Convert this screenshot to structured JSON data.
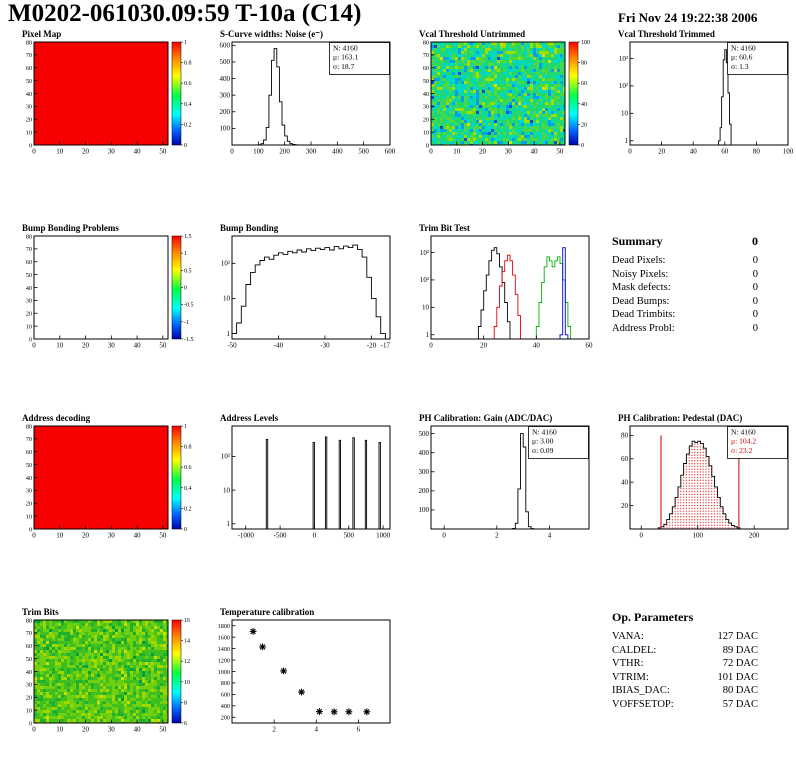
{
  "header": {
    "title": "M0202-061030.09:59 T-10a (C14)",
    "timestamp": "Fri Nov 24 19:22:38 2006"
  },
  "summary": {
    "title": "Summary",
    "total": "0",
    "rows": [
      [
        "Dead Pixels:",
        "0"
      ],
      [
        "Noisy Pixels:",
        "0"
      ],
      [
        "Mask defects:",
        "0"
      ],
      [
        "Dead Bumps:",
        "0"
      ],
      [
        "Dead Trimbits:",
        "0"
      ],
      [
        "Address Probl:",
        "0"
      ]
    ]
  },
  "op_parameters": {
    "title": "Op. Parameters",
    "rows": [
      [
        "VANA:",
        "127 DAC"
      ],
      [
        "CALDEL:",
        "89 DAC"
      ],
      [
        "VTHR:",
        "72 DAC"
      ],
      [
        "VTRIM:",
        "101 DAC"
      ],
      [
        "IBIAS_DAC:",
        "80 DAC"
      ],
      [
        "VOFFSETOP:",
        "57 DAC"
      ]
    ]
  },
  "chart_data": [
    {
      "id": "pixel-map",
      "title": "Pixel Map",
      "type": "heatmap",
      "fill": "#f90000",
      "xlim": [
        0,
        52
      ],
      "ylim": [
        0,
        80
      ],
      "xticks": [
        0,
        10,
        20,
        30,
        40,
        50
      ],
      "yticks": [
        0,
        10,
        20,
        30,
        40,
        50,
        60,
        70,
        80
      ],
      "colorbar": {
        "labels": [
          "1",
          "0.8",
          "0.6",
          "0.4",
          "0.2",
          "0"
        ]
      }
    },
    {
      "id": "scurve-noise",
      "title": "S-Curve widths: Noise (e⁻)",
      "type": "hist",
      "xlim": [
        0,
        600
      ],
      "ylim": [
        0,
        620
      ],
      "xticks": [
        0,
        100,
        200,
        300,
        400,
        500,
        600
      ],
      "yticks": [
        100,
        200,
        300,
        400,
        500,
        600
      ],
      "bin_width": 10,
      "bins": [
        [
          100,
          2
        ],
        [
          110,
          8
        ],
        [
          120,
          30
        ],
        [
          130,
          105
        ],
        [
          140,
          300
        ],
        [
          150,
          510
        ],
        [
          160,
          580
        ],
        [
          170,
          470
        ],
        [
          180,
          260
        ],
        [
          190,
          120
        ],
        [
          200,
          55
        ],
        [
          210,
          22
        ],
        [
          220,
          8
        ],
        [
          230,
          3
        ],
        [
          240,
          1
        ]
      ],
      "stats": {
        "lines": [
          {
            "text": "N: 4160",
            "color": "#000000"
          },
          {
            "text": "μ: 163.1",
            "color": "#000000"
          },
          {
            "text": "σ: 18.7",
            "color": "#000000"
          }
        ]
      }
    },
    {
      "id": "vcal-threshold-untrimmed",
      "title": "Vcal Threshold Untrimmed",
      "type": "heatmap",
      "noise": {
        "seed": 7,
        "palette": [
          "#0050e0",
          "#00a0f0",
          "#00d8c0",
          "#20d870",
          "#50d840",
          "#a0e000",
          "#e0e000"
        ]
      },
      "xlim": [
        0,
        52
      ],
      "ylim": [
        0,
        80
      ],
      "xticks": [
        0,
        10,
        20,
        30,
        40,
        50
      ],
      "yticks": [
        0,
        10,
        20,
        30,
        40,
        50,
        60,
        70,
        80
      ],
      "colorbar": {
        "labels": [
          "100",
          "80",
          "60",
          "40",
          "20",
          "0"
        ]
      }
    },
    {
      "id": "vcal-threshold-trimmed",
      "title": "Vcal Threshold Trimmed",
      "type": "hist",
      "ylog": true,
      "xlim": [
        0,
        100
      ],
      "ylim": [
        0.7,
        4000
      ],
      "xticks": [
        0,
        20,
        40,
        60,
        80,
        100
      ],
      "yticks": [
        1,
        10,
        100,
        1000
      ],
      "ytick_labels": [
        "1",
        "10",
        "10²",
        "10³"
      ],
      "bin_width": 1,
      "bins": [
        [
          56,
          1
        ],
        [
          57,
          3
        ],
        [
          58,
          40
        ],
        [
          59,
          900
        ],
        [
          60,
          2100
        ],
        [
          61,
          700
        ],
        [
          62,
          55
        ],
        [
          63,
          4
        ]
      ],
      "stats": {
        "lines": [
          {
            "text": "N: 4160",
            "color": "#000000"
          },
          {
            "text": "μ: 60.6",
            "color": "#000000"
          },
          {
            "text": "σ: 1.3",
            "color": "#000000"
          }
        ]
      }
    },
    {
      "id": "bump-bonding-problems",
      "title": "Bump Bonding Problems",
      "type": "heatmap",
      "xlim": [
        0,
        52
      ],
      "ylim": [
        0,
        80
      ],
      "xticks": [
        0,
        10,
        20,
        30,
        40,
        50
      ],
      "yticks": [
        0,
        10,
        20,
        30,
        40,
        50,
        60,
        70,
        80
      ],
      "colorbar": {
        "labels": [
          "1.5",
          "1",
          "0.5",
          "0",
          "-0.5",
          "-1",
          "-1.5"
        ]
      }
    },
    {
      "id": "bump-bonding",
      "title": "Bump Bonding",
      "type": "hist",
      "ylog": true,
      "xlim": [
        -50,
        -16
      ],
      "ylim": [
        0.7,
        600
      ],
      "xticks": [
        -50,
        -40,
        -30,
        -20,
        -17
      ],
      "yticks": [
        1,
        10,
        100
      ],
      "ytick_labels": [
        "1",
        "10",
        "10²"
      ],
      "bin_width": 1,
      "bins": [
        [
          -50,
          1
        ],
        [
          -49,
          2
        ],
        [
          -48,
          6
        ],
        [
          -47,
          25
        ],
        [
          -46,
          55
        ],
        [
          -45,
          90
        ],
        [
          -44,
          120
        ],
        [
          -43,
          150
        ],
        [
          -42,
          130
        ],
        [
          -41,
          170
        ],
        [
          -40,
          200
        ],
        [
          -39,
          180
        ],
        [
          -38,
          220
        ],
        [
          -37,
          200
        ],
        [
          -36,
          240
        ],
        [
          -35,
          210
        ],
        [
          -34,
          260
        ],
        [
          -33,
          230
        ],
        [
          -32,
          270
        ],
        [
          -31,
          250
        ],
        [
          -30,
          280
        ],
        [
          -29,
          240
        ],
        [
          -28,
          300
        ],
        [
          -27,
          260
        ],
        [
          -26,
          310
        ],
        [
          -25,
          280
        ],
        [
          -24,
          330
        ],
        [
          -23,
          250
        ],
        [
          -22,
          150
        ],
        [
          -21,
          40
        ],
        [
          -20,
          10
        ],
        [
          -19,
          3
        ],
        [
          -18,
          1
        ]
      ]
    },
    {
      "id": "trim-bit-test",
      "title": "Trim Bit Test",
      "type": "hist",
      "ylog": true,
      "xlim": [
        0,
        60
      ],
      "ylim": [
        0.7,
        4000
      ],
      "xticks": [
        0,
        20,
        40,
        60
      ],
      "yticks": [
        1,
        10,
        100,
        1000
      ],
      "ytick_labels": [
        "1",
        "10",
        "10²",
        "10³"
      ],
      "series": [
        {
          "name": "series-black",
          "color": "#000000",
          "bin_width": 1,
          "bins": [
            [
              18,
              2
            ],
            [
              19,
              8
            ],
            [
              20,
              40
            ],
            [
              21,
              150
            ],
            [
              22,
              500
            ],
            [
              23,
              1200
            ],
            [
              24,
              1500
            ],
            [
              25,
              900
            ],
            [
              26,
              300
            ],
            [
              27,
              80
            ],
            [
              28,
              15
            ],
            [
              29,
              3
            ]
          ]
        },
        {
          "name": "series-red",
          "color": "#e60000",
          "bin_width": 1,
          "bins": [
            [
              24,
              2
            ],
            [
              25,
              10
            ],
            [
              26,
              60
            ],
            [
              27,
              200
            ],
            [
              28,
              500
            ],
            [
              29,
              800
            ],
            [
              30,
              500
            ],
            [
              31,
              150
            ],
            [
              32,
              30
            ],
            [
              33,
              5
            ]
          ]
        },
        {
          "name": "series-green",
          "color": "#00b300",
          "bin_width": 1,
          "bins": [
            [
              40,
              2
            ],
            [
              41,
              15
            ],
            [
              42,
              80
            ],
            [
              43,
              300
            ],
            [
              44,
              700
            ],
            [
              45,
              500
            ],
            [
              46,
              300
            ],
            [
              47,
              500
            ],
            [
              48,
              700
            ],
            [
              49,
              400
            ],
            [
              50,
              100
            ],
            [
              51,
              15
            ],
            [
              52,
              2
            ]
          ]
        },
        {
          "name": "series-blue",
          "color": "#0000e6",
          "bin_width": 1,
          "bins": [
            [
              49,
              1
            ],
            [
              50,
              1500
            ],
            [
              51,
              1
            ]
          ]
        }
      ]
    },
    {
      "id": "address-decoding",
      "title": "Address decoding",
      "type": "heatmap",
      "fill": "#f90000",
      "xlim": [
        0,
        52
      ],
      "ylim": [
        0,
        80
      ],
      "xticks": [
        0,
        10,
        20,
        30,
        40,
        50
      ],
      "yticks": [
        0,
        10,
        20,
        30,
        40,
        50,
        60,
        70,
        80
      ],
      "colorbar": {
        "labels": [
          "1",
          "0.8",
          "0.6",
          "0.4",
          "0.2",
          "0"
        ]
      }
    },
    {
      "id": "address-levels",
      "title": "Address Levels",
      "type": "hist",
      "ylog": true,
      "xlim": [
        -1200,
        1100
      ],
      "ylim": [
        0.7,
        800
      ],
      "xticks": [
        -1000,
        -500,
        0,
        500,
        1000
      ],
      "yticks": [
        1,
        10,
        100
      ],
      "ytick_labels": [
        "1",
        "10",
        "10²"
      ],
      "bin_width": 20,
      "bins": [
        [
          -700,
          320
        ],
        [
          -20,
          260
        ],
        [
          160,
          380
        ],
        [
          360,
          300
        ],
        [
          560,
          360
        ],
        [
          740,
          300
        ],
        [
          940,
          260
        ]
      ]
    },
    {
      "id": "ph-calibration-gain",
      "title": "PH Calibration: Gain (ADC/DAC)",
      "type": "hist",
      "xlim": [
        -0.5,
        5.5
      ],
      "ylim": [
        0,
        540
      ],
      "xticks": [
        0,
        2,
        4
      ],
      "yticks": [
        100,
        200,
        300,
        400,
        500
      ],
      "bin_width": 0.1,
      "bins": [
        [
          2.6,
          3
        ],
        [
          2.7,
          30
        ],
        [
          2.8,
          210
        ],
        [
          2.9,
          500
        ],
        [
          3.0,
          430
        ],
        [
          3.1,
          90
        ],
        [
          3.2,
          12
        ],
        [
          3.3,
          2
        ]
      ],
      "stats": {
        "lines": [
          {
            "text": "N: 4160",
            "color": "#000000"
          },
          {
            "text": "μ: 3.00",
            "color": "#000000"
          },
          {
            "text": "σ: 0.09",
            "color": "#000000"
          }
        ]
      }
    },
    {
      "id": "ph-calibration-pedestal",
      "title": "PH Calibration: Pedestal (DAC)",
      "type": "hist",
      "xlim": [
        -20,
        260
      ],
      "ylim": [
        0,
        88
      ],
      "xticks": [
        0,
        100,
        200
      ],
      "yticks": [
        20,
        40,
        60,
        80
      ],
      "bin_width": 5,
      "fill": "dots-red",
      "line": "#000000",
      "bins": [
        [
          30,
          1
        ],
        [
          35,
          2
        ],
        [
          40,
          4
        ],
        [
          45,
          8
        ],
        [
          50,
          13
        ],
        [
          55,
          19
        ],
        [
          60,
          27
        ],
        [
          65,
          36
        ],
        [
          70,
          46
        ],
        [
          75,
          56
        ],
        [
          80,
          64
        ],
        [
          85,
          71
        ],
        [
          90,
          75
        ],
        [
          95,
          74
        ],
        [
          100,
          75
        ],
        [
          105,
          73
        ],
        [
          110,
          69
        ],
        [
          115,
          62
        ],
        [
          120,
          54
        ],
        [
          125,
          45
        ],
        [
          130,
          36
        ],
        [
          135,
          27
        ],
        [
          140,
          19
        ],
        [
          145,
          13
        ],
        [
          150,
          8
        ],
        [
          155,
          5
        ],
        [
          160,
          3
        ],
        [
          165,
          2
        ],
        [
          170,
          1
        ]
      ],
      "vlines": [
        {
          "x": 35,
          "y": 80,
          "color": "#cc0000"
        },
        {
          "x": 173,
          "y": 80,
          "color": "#cc0000"
        }
      ],
      "stats": {
        "lines": [
          {
            "text": "N: 4160",
            "color": "#000000"
          },
          {
            "text": "μ: 104.2",
            "color": "#cc0000"
          },
          {
            "text": "σ: 23.2",
            "color": "#cc0000"
          }
        ]
      }
    },
    {
      "id": "trim-bits",
      "title": "Trim Bits",
      "type": "heatmap",
      "noise": {
        "seed": 13,
        "palette": [
          "#00a040",
          "#20b030",
          "#40c020",
          "#70d010",
          "#a0d800",
          "#c8e000"
        ]
      },
      "xlim": [
        0,
        52
      ],
      "ylim": [
        0,
        80
      ],
      "xticks": [
        0,
        10,
        20,
        30,
        40,
        50
      ],
      "yticks": [
        0,
        10,
        20,
        30,
        40,
        50,
        60,
        70,
        80
      ],
      "colorbar": {
        "labels": [
          "16",
          "14",
          "12",
          "10",
          "8",
          "6"
        ]
      }
    },
    {
      "id": "temperature-calibration",
      "title": "Temperature calibration",
      "type": "scatter",
      "marker": "asterisk",
      "xlim": [
        0,
        7.5
      ],
      "ylim": [
        100,
        1900
      ],
      "xticks": [
        2,
        4,
        6
      ],
      "yticks": [
        200,
        400,
        600,
        800,
        1000,
        1200,
        1400,
        1600,
        1800
      ],
      "points": [
        [
          1,
          1700
        ],
        [
          1.45,
          1430
        ],
        [
          2.45,
          1010
        ],
        [
          3.3,
          640
        ],
        [
          4.15,
          300
        ],
        [
          4.85,
          295
        ],
        [
          5.55,
          295
        ],
        [
          6.4,
          295
        ]
      ]
    }
  ]
}
